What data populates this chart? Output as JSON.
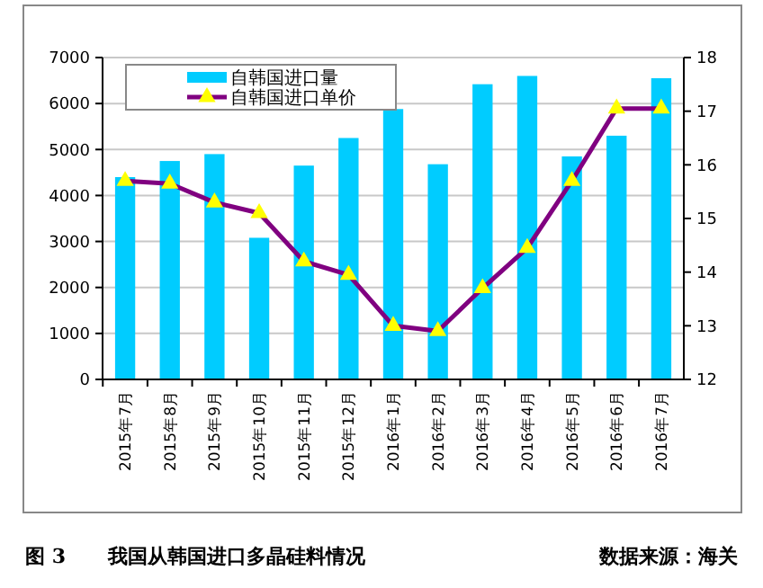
{
  "chart_data": {
    "type": "bar",
    "title": "我国从韩国进口多晶硅料情况",
    "annotations": [
      "图 3",
      "数据来源：海关"
    ],
    "categories": [
      "2015年7月",
      "2015年8月",
      "2015年9月",
      "2015年10月",
      "2015年11月",
      "2015年12月",
      "2016年1月",
      "2016年2月",
      "2016年3月",
      "2016年4月",
      "2016年5月",
      "2016年6月",
      "2016年7月"
    ],
    "series": [
      {
        "name": "自韩国进口量",
        "color": "#00ccff",
        "values": [
          4400,
          4750,
          4900,
          3080,
          4650,
          5250,
          5880,
          4680,
          6420,
          6600,
          4850,
          5300,
          6550
        ]
      },
      {
        "name": "自韩国进口单价",
        "type": "line",
        "axis": "y2",
        "color": "#800080",
        "marker": "triangle",
        "values": [
          15.7,
          15.65,
          15.3,
          15.1,
          14.2,
          13.95,
          13.0,
          12.9,
          13.7,
          14.45,
          15.7,
          17.05,
          17.05
        ]
      }
    ],
    "ylim": [
      0,
      7000
    ],
    "yticks": [
      0,
      1000,
      2000,
      3000,
      4000,
      5000,
      6000,
      7000
    ],
    "y2lim": [
      12,
      18
    ],
    "y2ticks": [
      12,
      13,
      14,
      15,
      16,
      17,
      18
    ],
    "grid": "y",
    "legend": "top left"
  }
}
